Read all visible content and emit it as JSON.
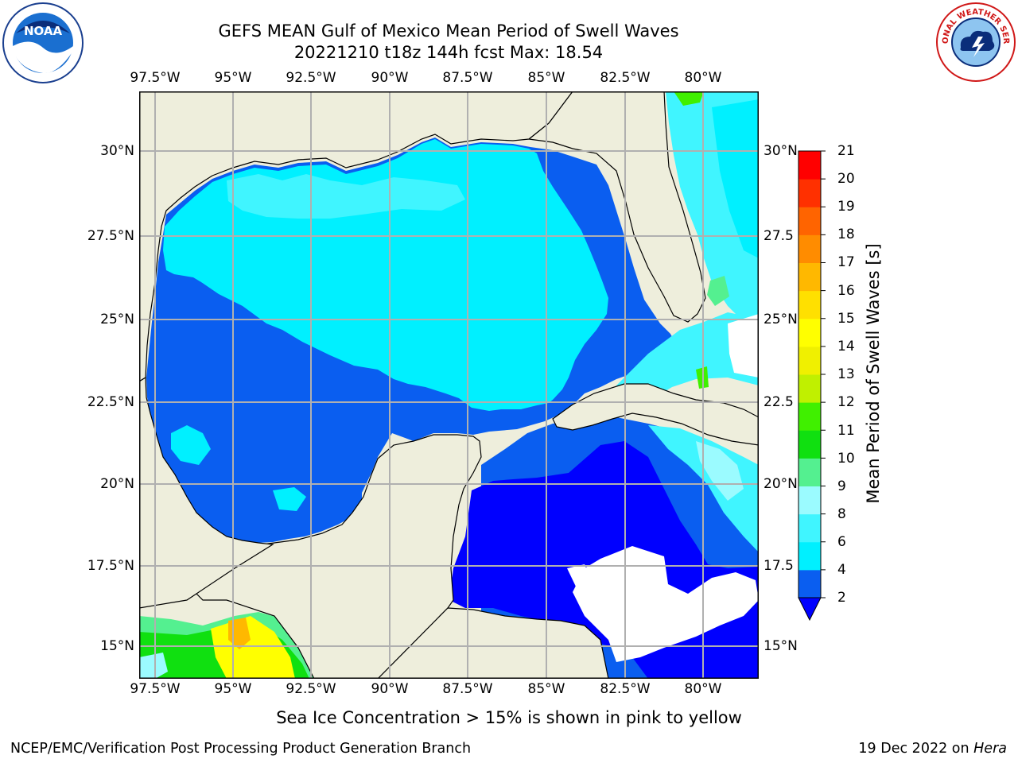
{
  "title_line1": "GEFS MEAN Gulf of Mexico Mean Period of Swell Waves",
  "title_line2": "20221210 t18z 144h fcst   Max: 18.54",
  "lon_labels": [
    "97.5°W",
    "95°W",
    "92.5°W",
    "90°W",
    "87.5°W",
    "85°W",
    "82.5°W",
    "80°W"
  ],
  "lat_labels_left": [
    "30°N",
    "27.5°N",
    "25°N",
    "22.5°N",
    "20°N",
    "17.5°N",
    "15°N"
  ],
  "lat_labels_right": [
    "30°N",
    "27.5",
    "25°N",
    "22.5",
    "20°N",
    "17.5",
    "15°N"
  ],
  "colorbar": {
    "label": "Mean Period of Swell Waves [s]",
    "ticks": [
      "2",
      "4",
      "6",
      "8",
      "9",
      "10",
      "11",
      "12",
      "13",
      "14",
      "15",
      "16",
      "17",
      "18",
      "19",
      "20",
      "21"
    ],
    "colors": [
      "#0a5ef0",
      "#00f0ff",
      "#40f5ff",
      "#9bfbff",
      "#54f090",
      "#10e010",
      "#40f000",
      "#c0f000",
      "#f0f000",
      "#ffff00",
      "#ffe000",
      "#ffb800",
      "#ff8c00",
      "#ff6400",
      "#ff3000",
      "#ff0000"
    ],
    "extend_color": "#0000ff"
  },
  "map_colors": {
    "land": "#eeeedc",
    "no_data": "#ffffff",
    "grid": "#b0b0b0"
  },
  "logos": {
    "noaa_text": "NOAA",
    "nws_text": "NATIONAL WEATHER SERVICE"
  },
  "footer_note": "Sea Ice Concentration > 15% is shown in pink to yellow",
  "credit_left": "NCEP/EMC/Verification Post Processing Product Generation Branch",
  "credit_date": "19 Dec 2022 on ",
  "credit_host": "Hera"
}
